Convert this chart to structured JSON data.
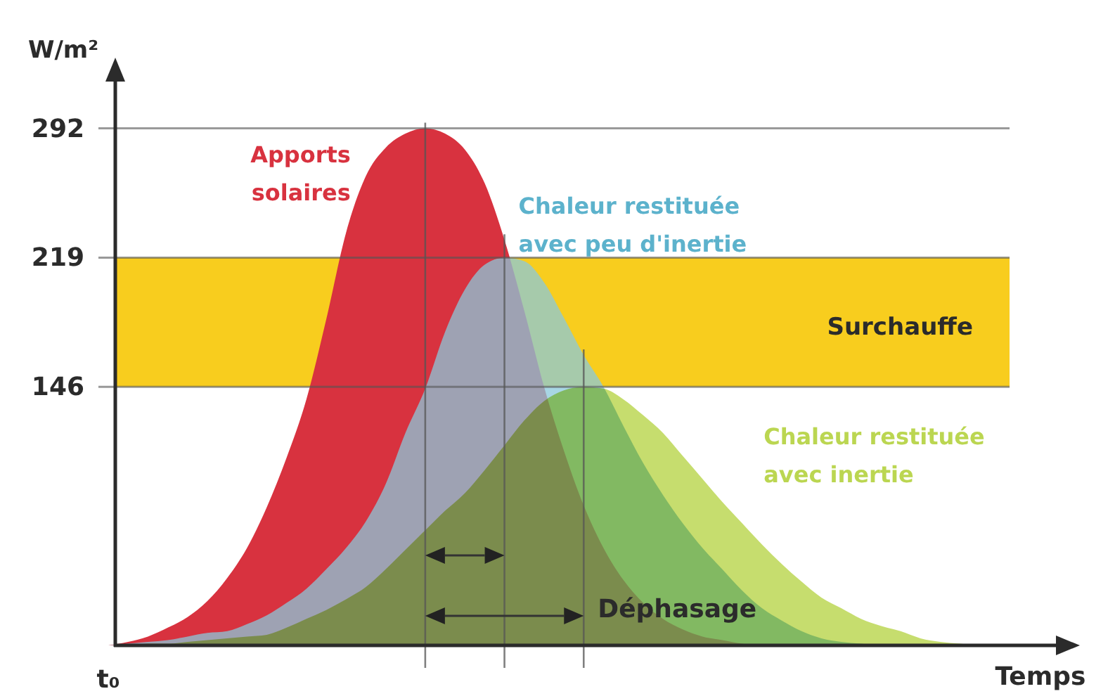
{
  "chart_data": {
    "type": "area",
    "ylabel": "W/m²",
    "xlabel": "Temps",
    "categories": [
      "t₀",
      null,
      null,
      null,
      null,
      null,
      null,
      null,
      null,
      null,
      null,
      null,
      null,
      null,
      null,
      null,
      null,
      null,
      null,
      null,
      null,
      null,
      null,
      null,
      null,
      null,
      null,
      null,
      null,
      null,
      null,
      null,
      null,
      null,
      null,
      null,
      null,
      null,
      null,
      null,
      null,
      null,
      null,
      null,
      null,
      null
    ],
    "series": [
      {
        "name": "Apports solaires",
        "color": "#d8323f",
        "values": [
          0,
          2,
          5,
          10,
          16,
          25,
          38,
          55,
          78,
          106,
          139,
          184,
          233,
          265,
          281,
          289,
          292,
          289,
          280,
          261,
          229,
          189,
          146,
          110,
          79,
          55,
          37,
          24,
          15,
          9,
          5,
          3,
          1,
          0,
          0,
          0,
          0,
          0,
          0,
          0,
          0,
          0,
          0,
          0,
          0,
          0
        ]
      },
      {
        "name": "Chaleur restituée avec peu d'inertie",
        "color": "#a8d6e4",
        "values": [
          0,
          1,
          2,
          3,
          5,
          7,
          8,
          12,
          17,
          24,
          32,
          43,
          55,
          70,
          91,
          120,
          145,
          177,
          201,
          215,
          219,
          217,
          205,
          185,
          164,
          146,
          124,
          103,
          85,
          69,
          55,
          43,
          31,
          21,
          14,
          8,
          4,
          2,
          1,
          0,
          0,
          0,
          0,
          0,
          0,
          0
        ]
      },
      {
        "name": "Chaleur restituée avec inertie",
        "color": "#c6dd6e",
        "values": [
          0,
          0,
          1,
          1,
          2,
          3,
          4,
          5,
          6,
          10,
          15,
          20,
          26,
          33,
          43,
          54,
          65,
          76,
          86,
          99,
          113,
          127,
          138,
          144,
          146,
          145,
          139,
          130,
          120,
          107,
          94,
          81,
          69,
          57,
          46,
          36,
          27,
          21,
          15,
          11,
          8,
          4,
          2,
          1,
          0,
          0
        ]
      }
    ],
    "ylim": [
      0,
      320
    ],
    "yticks": [
      146,
      219,
      292
    ],
    "grid": "y",
    "legend": false,
    "bands": [
      {
        "axis": "y",
        "from": 146,
        "to": 219,
        "label": "Surchauffe",
        "color": "#f8cd1e"
      }
    ],
    "annotations": [
      "Déphasage"
    ]
  }
}
